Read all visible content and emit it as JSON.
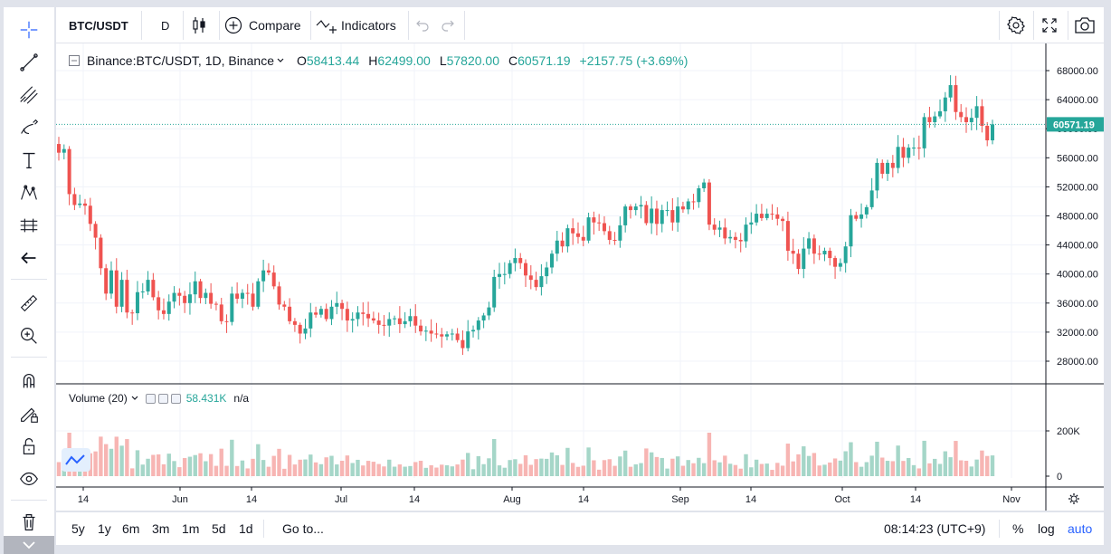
{
  "toolbar": {
    "symbol": "BTC/USDT",
    "interval": "D",
    "compare_label": "Compare",
    "indicators_label": "Indicators"
  },
  "legend": {
    "symbol_full": "Binance:BTC/USDT, 1D, Binance",
    "open_key": "O",
    "open": "58413.44",
    "high_key": "H",
    "high": "62499.00",
    "low_key": "L",
    "low": "57820.00",
    "close_key": "C",
    "close": "60571.19",
    "change": "+2157.75 (+3.69%)"
  },
  "price_label": "60571.19",
  "volume_legend": {
    "label": "Volume (20)",
    "value": "58.431K",
    "na": "n/a"
  },
  "bottom_toolbar": {
    "ranges": [
      "5y",
      "1y",
      "6m",
      "3m",
      "1m",
      "5d",
      "1d"
    ],
    "goto_label": "Go to...",
    "clock": "08:14:23 (UTC+9)",
    "percent_label": "%",
    "log_label": "log",
    "auto_label": "auto"
  },
  "colors": {
    "up": "#26a69a",
    "down": "#ef5350",
    "up_volume": "#a5d6c8",
    "down_volume": "#f7b5b3",
    "accent": "#2962ff"
  },
  "icons": {
    "left_toolbar": [
      "crosshair-icon",
      "trend-line-icon",
      "fib-icon",
      "brush-icon",
      "text-icon",
      "pattern-icon",
      "prediction-icon",
      "back-arrow-icon",
      "ruler-icon",
      "zoom-in-icon",
      "magnet-icon",
      "lock-pencil-icon",
      "unlock-icon",
      "eye-icon",
      "trash-icon"
    ],
    "top_right": [
      "settings-icon",
      "fullscreen-icon",
      "camera-icon"
    ]
  },
  "chart_data": {
    "type": "candlestick",
    "ylim": [
      25000,
      70000
    ],
    "y_ticks": [
      "68000.00",
      "64000.00",
      "60000.00",
      "56000.00",
      "52000.00",
      "48000.00",
      "44000.00",
      "40000.00",
      "36000.00",
      "32000.00",
      "28000.00"
    ],
    "volume_ticks": [
      "200K",
      "0"
    ],
    "x_ticks": [
      "14",
      "Jun",
      "14",
      "Jul",
      "14",
      "Aug",
      "14",
      "Sep",
      "14",
      "Oct",
      "14",
      "Nov"
    ],
    "closes": [
      56700,
      57200,
      51000,
      49500,
      49700,
      49400,
      46900,
      45000,
      40800,
      37300,
      40500,
      35500,
      39200,
      34700,
      34600,
      37500,
      37600,
      39200,
      36800,
      35000,
      34500,
      36200,
      37400,
      37000,
      36000,
      37200,
      39000,
      36700,
      37400,
      35900,
      35800,
      33500,
      33400,
      37300,
      36600,
      37400,
      37300,
      35500,
      39000,
      40500,
      40200,
      38300,
      35800,
      35500,
      33500,
      33000,
      31800,
      32500,
      34700,
      34400,
      35200,
      33800,
      35500,
      36000,
      35200,
      33600,
      33800,
      34700,
      34500,
      33900,
      33600,
      33000,
      32900,
      33800,
      33900,
      33100,
      33500,
      34200,
      32900,
      32100,
      32200,
      31800,
      31700,
      31400,
      31700,
      31800,
      30900,
      29800,
      32100,
      32300,
      33600,
      34300,
      35400,
      39600,
      40000,
      40000,
      41500,
      42200,
      41500,
      39800,
      39200,
      38200,
      39700,
      40900,
      42800,
      44600,
      43800,
      46300,
      45600,
      45100,
      44600,
      47800,
      47100,
      47000,
      45900,
      44700,
      44600,
      46700,
      49300,
      48800,
      49300,
      49500,
      47000,
      49000,
      46900,
      48800,
      48800,
      47100,
      49300,
      48900,
      50000,
      49900,
      51800,
      52600,
      46800,
      46100,
      46400,
      44900,
      45100,
      44700,
      44500,
      46800,
      47100,
      48300,
      47700,
      48300,
      48200,
      47600,
      47300,
      43200,
      42800,
      40700,
      43500,
      44900,
      42800,
      42700,
      43200,
      42200,
      41000,
      41500,
      43800,
      48100,
      47600,
      48200,
      49200,
      51500,
      55300,
      53800,
      55300,
      54600,
      57500,
      56000,
      57400,
      57400,
      57300,
      61600,
      60900,
      61700,
      62400,
      64300,
      66000,
      62300,
      61600,
      60900,
      61500,
      63100,
      60400,
      58400,
      60600
    ],
    "notes": "Daily candlesticks, mid-May to late Oct; volume pane shows up/down colored bars"
  }
}
